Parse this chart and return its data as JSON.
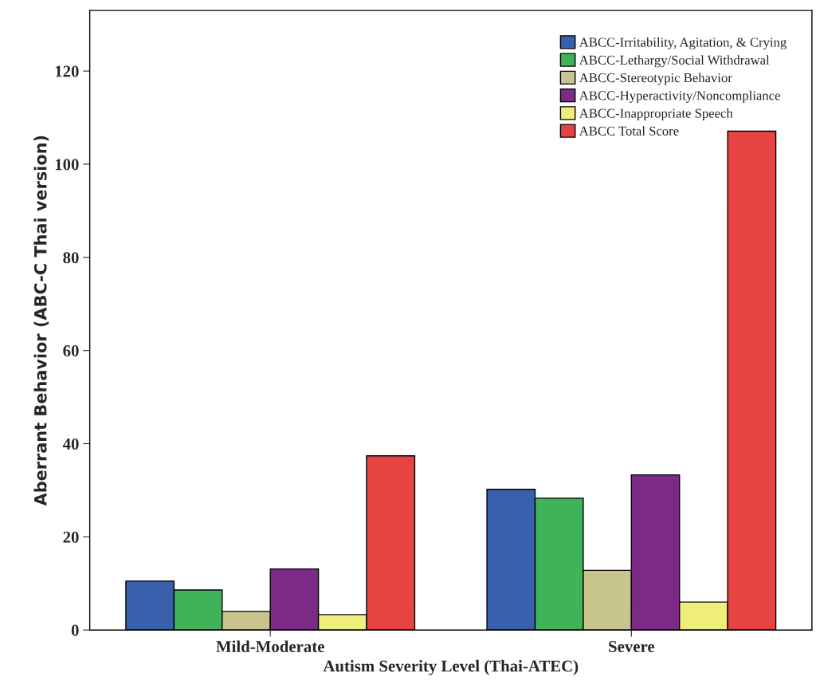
{
  "chart_data": {
    "type": "bar",
    "xlabel": "Autism Severity Level (Thai-ATEC)",
    "ylabel": "Aberrant Behavior (ABC-C Thai version)",
    "categories": [
      "Mild-Moderate",
      "Severe"
    ],
    "series": [
      {
        "name": "ABCC-Irritability, Agitation, & Crying",
        "color": "#3a5fad",
        "values": [
          10.5,
          30.2
        ]
      },
      {
        "name": "ABCC-Lethargy/Social Withdrawal",
        "color": "#3fb25a",
        "values": [
          8.6,
          28.3
        ]
      },
      {
        "name": "ABCC-Stereotypic Behavior",
        "color": "#c8c48e",
        "values": [
          4.0,
          12.8
        ]
      },
      {
        "name": "ABCC-Hyperactivity/Noncompliance",
        "color": "#7b2a85",
        "values": [
          13.1,
          33.3
        ]
      },
      {
        "name": "ABCC-Inappropriate Speech",
        "color": "#f0ee7a",
        "values": [
          3.3,
          6.0
        ]
      },
      {
        "name": "ABCC Total Score",
        "color": "#e84343",
        "values": [
          37.4,
          107.1
        ]
      }
    ],
    "ylim": [
      0,
      133
    ],
    "yticks": [
      0,
      20,
      40,
      60,
      80,
      100,
      120
    ],
    "grid": false,
    "legend": "top right"
  }
}
